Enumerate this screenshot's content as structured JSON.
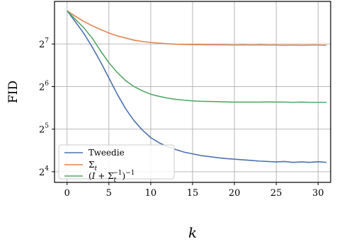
{
  "chart_data": {
    "type": "line",
    "xlabel": "k",
    "ylabel": "FID",
    "xlim": [
      -1.5,
      31.5
    ],
    "ylim": [
      3.75,
      8
    ],
    "yscale": "log2",
    "x_ticks": [
      0,
      5,
      10,
      15,
      20,
      25,
      30
    ],
    "y_ticks": [
      {
        "base": "2",
        "exp": "4",
        "log2": 4
      },
      {
        "base": "2",
        "exp": "5",
        "log2": 5
      },
      {
        "base": "2",
        "exp": "6",
        "log2": 6
      },
      {
        "base": "2",
        "exp": "7",
        "log2": 7
      }
    ],
    "grid": true,
    "legend_position": "lower-left",
    "x": [
      0,
      1,
      2,
      3,
      4,
      5,
      6,
      7,
      8,
      9,
      10,
      11,
      12,
      13,
      14,
      15,
      16,
      17,
      18,
      19,
      20,
      21,
      22,
      23,
      24,
      25,
      26,
      27,
      28,
      29,
      30,
      31
    ],
    "series": [
      {
        "name": "Tweedie",
        "color": "#4c72b0",
        "log2_values": [
          7.78,
          7.52,
          7.25,
          6.93,
          6.58,
          6.2,
          5.82,
          5.48,
          5.2,
          4.98,
          4.8,
          4.68,
          4.59,
          4.52,
          4.46,
          4.42,
          4.38,
          4.355,
          4.33,
          4.31,
          4.295,
          4.28,
          4.265,
          4.25,
          4.24,
          4.23,
          4.24,
          4.22,
          4.23,
          4.22,
          4.235,
          4.22
        ]
      },
      {
        "name": "Σ_t",
        "color": "#dd8452",
        "log2_values": [
          7.78,
          7.65,
          7.53,
          7.43,
          7.34,
          7.26,
          7.19,
          7.14,
          7.09,
          7.06,
          7.035,
          7.02,
          7.005,
          6.995,
          6.99,
          6.985,
          6.985,
          6.98,
          6.98,
          6.98,
          6.975,
          6.98,
          6.975,
          6.98,
          6.975,
          6.975,
          6.97,
          6.975,
          6.97,
          6.975,
          6.975,
          6.97
        ]
      },
      {
        "name": "(I + Σ_t^{-1})^{-1}",
        "color": "#55a868",
        "log2_values": [
          7.78,
          7.58,
          7.38,
          7.14,
          6.84,
          6.56,
          6.33,
          6.14,
          6.0,
          5.9,
          5.82,
          5.77,
          5.73,
          5.7,
          5.68,
          5.665,
          5.655,
          5.65,
          5.645,
          5.64,
          5.635,
          5.635,
          5.635,
          5.635,
          5.64,
          5.635,
          5.635,
          5.63,
          5.635,
          5.63,
          5.63,
          5.63
        ]
      }
    ]
  }
}
